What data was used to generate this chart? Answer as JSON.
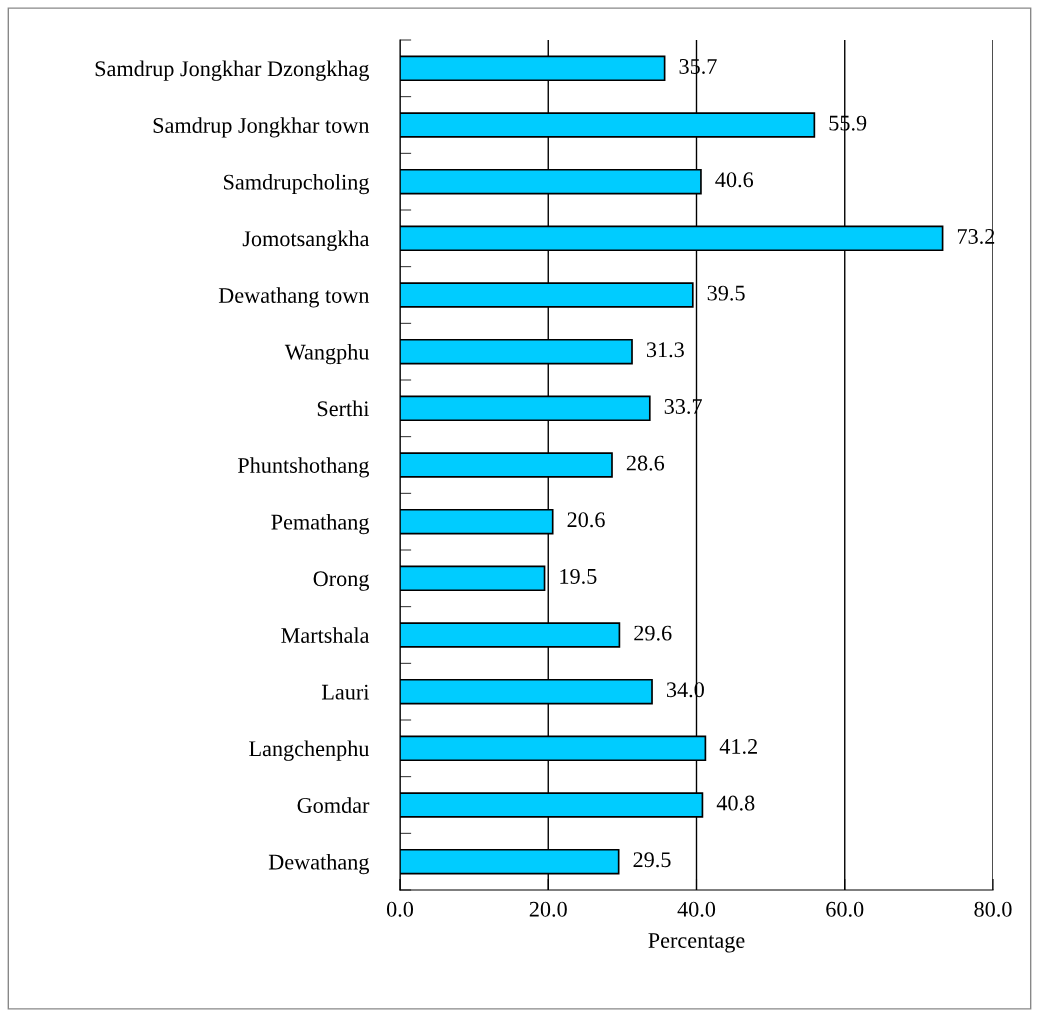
{
  "chart_data": {
    "type": "bar",
    "orientation": "horizontal",
    "xlabel": "Percentage",
    "categories": [
      "Samdrup Jongkhar Dzongkhag",
      "Samdrup Jongkhar town",
      "Samdrupcholing",
      "Jomotsangkha",
      "Dewathang town",
      "Wangphu",
      "Serthi",
      "Phuntshothang",
      "Pemathang",
      "Orong",
      "Martshala",
      "Lauri",
      "Langchenphu",
      "Gomdar",
      "Dewathang"
    ],
    "values": [
      35.7,
      55.9,
      40.6,
      73.2,
      39.5,
      31.3,
      33.7,
      28.6,
      20.6,
      19.5,
      29.6,
      34.0,
      41.2,
      40.8,
      29.5
    ],
    "value_labels": [
      "35.7",
      "55.9",
      "40.6",
      "73.2",
      "39.5",
      "31.3",
      "33.7",
      "28.6",
      "20.6",
      "19.5",
      "29.6",
      "34.0",
      "41.2",
      "40.8",
      "29.5"
    ],
    "color": "#00ccff",
    "xlim": [
      0,
      80
    ],
    "xticks": [
      {
        "value": 0,
        "label": "0.0"
      },
      {
        "value": 20,
        "label": "20.0"
      },
      {
        "value": 40,
        "label": "40.0"
      },
      {
        "value": 60,
        "label": "60.0"
      },
      {
        "value": 80,
        "label": "80.0"
      }
    ],
    "grid": "x",
    "legend": false
  }
}
